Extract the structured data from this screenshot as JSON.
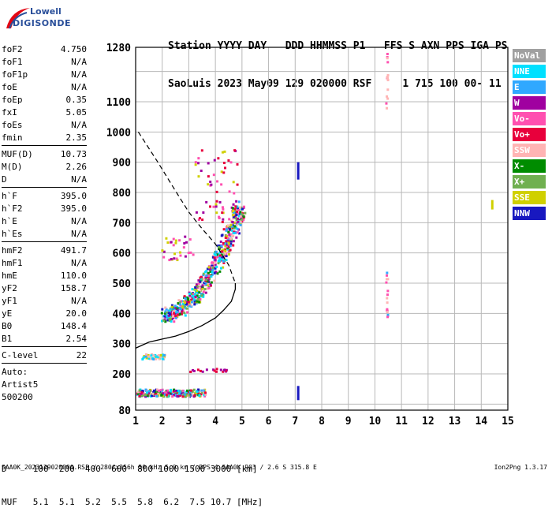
{
  "logo": {
    "line1": "Lowell",
    "line2": "DIGISONDE"
  },
  "header": {
    "row1": "Station YYYY DAY   DDD HHMMSS P1   FFS S AXN PPS IGA PS",
    "row2": "SaoLuis 2023 May09 129 020000 RSF     1 715 100 00- 11"
  },
  "params": [
    {
      "k": "foF2",
      "v": "4.750"
    },
    {
      "k": "foF1",
      "v": "N/A"
    },
    {
      "k": "foF1p",
      "v": "N/A"
    },
    {
      "k": "foE",
      "v": "N/A"
    },
    {
      "k": "foEp",
      "v": "0.35"
    },
    {
      "k": "fxI",
      "v": "5.05"
    },
    {
      "k": "foEs",
      "v": "N/A"
    },
    {
      "k": "fmin",
      "v": "2.35"
    },
    {
      "sep": true
    },
    {
      "k": "MUF(D)",
      "v": "10.73"
    },
    {
      "k": "M(D)",
      "v": "2.26"
    },
    {
      "k": "D",
      "v": "N/A"
    },
    {
      "sep": true
    },
    {
      "k": "h`F",
      "v": "395.0"
    },
    {
      "k": "h`F2",
      "v": "395.0"
    },
    {
      "k": "h`E",
      "v": "N/A"
    },
    {
      "k": "h`Es",
      "v": "N/A"
    },
    {
      "sep": true
    },
    {
      "k": "hmF2",
      "v": "491.7"
    },
    {
      "k": "hmF1",
      "v": "N/A"
    },
    {
      "k": "hmE",
      "v": "110.0"
    },
    {
      "k": "yF2",
      "v": "158.7"
    },
    {
      "k": "yF1",
      "v": "N/A"
    },
    {
      "k": "yE",
      "v": "20.0"
    },
    {
      "k": "B0",
      "v": "148.4"
    },
    {
      "k": "B1",
      "v": "2.54"
    },
    {
      "sep": true
    },
    {
      "k": "C-level",
      "v": "22"
    },
    {
      "sep": true
    },
    {
      "text": "Auto:"
    },
    {
      "text": "Artist5"
    },
    {
      "text": "500200"
    }
  ],
  "legend": [
    {
      "label": "NoVal",
      "color": "#a0a0a0"
    },
    {
      "label": "NNE",
      "color": "#00e0ff"
    },
    {
      "label": "E",
      "color": "#30a8ff"
    },
    {
      "label": "W",
      "color": "#a000a0"
    },
    {
      "label": "Vo-",
      "color": "#ff50b0"
    },
    {
      "label": "Vo+",
      "color": "#e8003c"
    },
    {
      "label": "SSW",
      "color": "#ffb4b4"
    },
    {
      "label": "X-",
      "color": "#008c00"
    },
    {
      "label": "X+",
      "color": "#70b050"
    },
    {
      "label": "SSE",
      "color": "#d0d000"
    },
    {
      "label": "NNW",
      "color": "#1818c0"
    }
  ],
  "muf_table": {
    "d_row": "D     100  200  400  600  800 1000 1500 3000 [km]",
    "muf_row": "MUF   5.1  5.1  5.2  5.5  5.8  6.2  7.5 10.7 [MHz]"
  },
  "footer": {
    "left": "SAA0K_2023129020000.RSF / 280fx256h 50 kHz 5.0 km / DPS-4 SAA0K 903 / 2.6 S 315.8 E",
    "right": "Ion2Png 1.3.17"
  },
  "chart_data": {
    "type": "scatter",
    "xlim": [
      1,
      15
    ],
    "ylim": [
      80,
      1280
    ],
    "x_ticks": [
      1,
      2,
      3,
      4,
      5,
      6,
      7,
      8,
      9,
      10,
      11,
      12,
      13,
      14,
      15
    ],
    "y_ticks": [
      80,
      200,
      300,
      400,
      500,
      600,
      700,
      800,
      900,
      1000,
      1100,
      1280
    ],
    "grid": true,
    "profile_curve": [
      [
        1.0,
        285
      ],
      [
        1.5,
        305
      ],
      [
        2.0,
        315
      ],
      [
        2.5,
        325
      ],
      [
        3.0,
        340
      ],
      [
        3.5,
        360
      ],
      [
        4.0,
        385
      ],
      [
        4.3,
        410
      ],
      [
        4.6,
        440
      ],
      [
        4.75,
        480
      ],
      [
        4.75,
        500
      ]
    ],
    "muf_curve": [
      [
        1.1,
        1000
      ],
      [
        1.8,
        905
      ],
      [
        2.5,
        805
      ],
      [
        3.0,
        735
      ],
      [
        3.5,
        680
      ],
      [
        4.0,
        630
      ],
      [
        4.5,
        560
      ],
      [
        4.75,
        500
      ]
    ],
    "traces": [
      {
        "name": "F2-trace",
        "x": [
          2.0,
          2.4,
          2.8,
          3.2,
          3.6,
          4.0,
          4.3,
          4.6,
          4.8
        ],
        "y": [
          395,
          410,
          440,
          470,
          520,
          580,
          640,
          700,
          760
        ]
      },
      {
        "name": "E-trace",
        "x": [
          1.1,
          1.5,
          2.0,
          2.5,
          3.0,
          3.5
        ],
        "y": [
          140,
          140,
          140,
          140,
          138,
          138
        ]
      },
      {
        "name": "Es-trace",
        "x": [
          1.3,
          1.6,
          2.0
        ],
        "y": [
          260,
          262,
          260
        ]
      }
    ]
  }
}
